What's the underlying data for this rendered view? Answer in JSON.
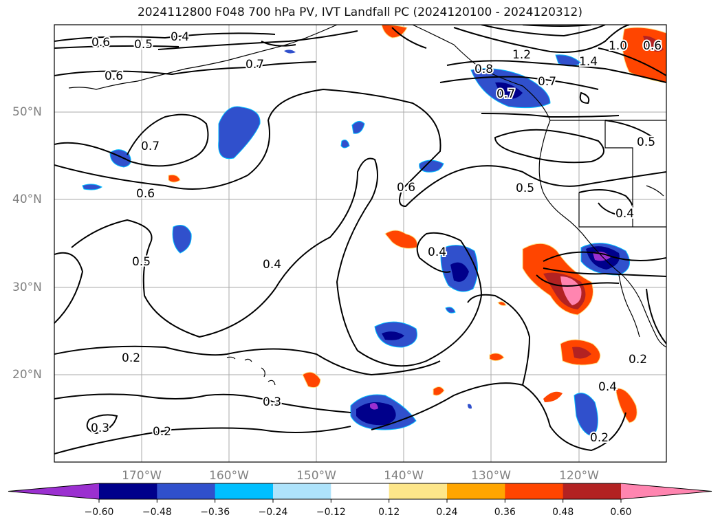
{
  "title": "2024112800 F048 700 hPa PV, IVT Landfall PC (2024120100 - 2024120312)",
  "lon_labels": [
    "170°W",
    "160°W",
    "150°W",
    "140°W",
    "130°W",
    "120°W"
  ],
  "lat_labels": [
    "50°N",
    "40°N",
    "30°N",
    "20°N"
  ],
  "contour_labels": [
    "0.6",
    "0.5",
    "0.4",
    "0.6",
    "0.7",
    "0.7",
    "0.6",
    "0.5",
    "0.4",
    "0.5",
    "0.4",
    "0.3",
    "0.2",
    "0.2",
    "0.3",
    "0.6",
    "0.7",
    "0.4",
    "0.8",
    "1.2",
    "1.4",
    "1.0",
    "0.6",
    "0.7",
    "0.5",
    "0.2",
    "0.4",
    "0.2"
  ],
  "colorbar": {
    "colors": [
      "#9b30d0",
      "#00008b",
      "#3050cc",
      "#00bfff",
      "#aee3fb",
      "#ffffff",
      "#fde68a",
      "#ffa500",
      "#ff4500",
      "#b22222",
      "#ff85b0"
    ],
    "tick_labels": [
      "−0.60",
      "−0.48",
      "−0.36",
      "−0.24",
      "−0.12",
      "0.12",
      "0.24",
      "0.36",
      "0.48",
      "0.60"
    ]
  },
  "colors": {
    "contour": "#000000",
    "grid": "#999999",
    "coast": "#000000"
  }
}
